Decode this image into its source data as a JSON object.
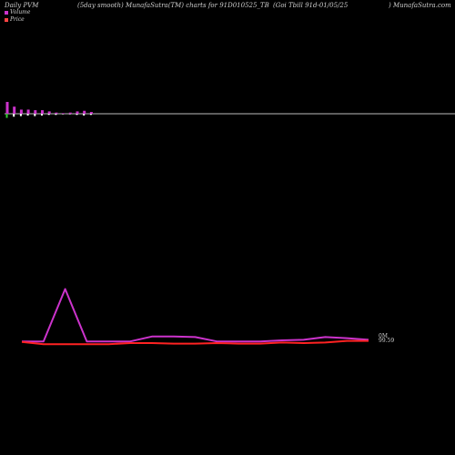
{
  "header": {
    "left": "Daily PVM",
    "center": "(5day smooth) MunafaSutra(TM) charts for 91D010525_TB",
    "right": "(Goi  Tbill 91d-01/05/25",
    "brand": ") MunafaSutra.com"
  },
  "legend": {
    "volume_label": "Volume",
    "price_label": "Price",
    "volume_color": "#cc33cc",
    "price_color": "#ff4444"
  },
  "colors": {
    "background": "#000000",
    "baseline": "#bbbbbb",
    "volume_bar": "#cc33cc",
    "price_bar": "#ffffff"
  },
  "chart_data": [
    {
      "type": "bar",
      "panel": "volume bars",
      "bars": [
        {
          "volume": 1.0,
          "price": 0.35,
          "price_color": "#33cc33"
        },
        {
          "volume": 0.6,
          "price": 0.25
        },
        {
          "volume": 0.35,
          "price": 0.2
        },
        {
          "volume": 0.35,
          "price": 0.15
        },
        {
          "volume": 0.3,
          "price": 0.2
        },
        {
          "volume": 0.3,
          "price": 0.15
        },
        {
          "volume": 0.2,
          "price": 0.1
        },
        {
          "volume": 0.1,
          "price": 0.1
        },
        {
          "volume": 0.05,
          "price": 0.05
        },
        {
          "volume": 0.1,
          "price": 0.05
        },
        {
          "volume": 0.2,
          "price": 0.1
        },
        {
          "volume": 0.25,
          "price": 0.15
        },
        {
          "volume": 0.15,
          "price": 0.1
        }
      ]
    },
    {
      "type": "line",
      "panel": "smoothed lines",
      "end_label_1": "0M",
      "end_label_2": "99.59",
      "series": [
        {
          "line": "volume",
          "color": "#cc33cc",
          "values": [
            0.3,
            0.3,
            9.9,
            0.3,
            0.3,
            0.3,
            1.2,
            1.2,
            1.1,
            0.3,
            0.3,
            0.3,
            0.5,
            0.6,
            1.1,
            0.9,
            0.6
          ]
        },
        {
          "line": "price",
          "color": "#ff2222",
          "values": [
            0.2,
            -0.2,
            -0.2,
            -0.2,
            -0.2,
            0.0,
            0.0,
            -0.1,
            -0.1,
            0.0,
            -0.1,
            -0.1,
            0.1,
            0.0,
            0.1,
            0.4,
            0.4
          ]
        }
      ]
    }
  ]
}
